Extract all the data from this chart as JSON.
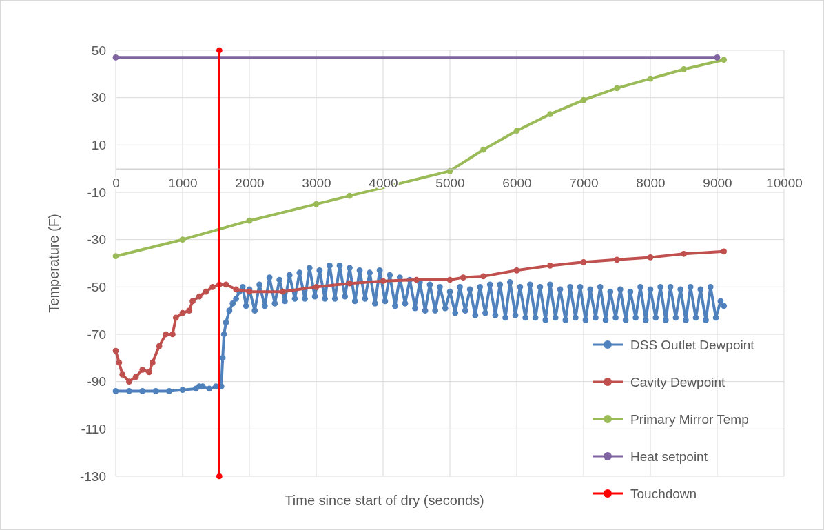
{
  "chart_data": {
    "type": "line",
    "xlabel": "Time since start of dry (seconds)",
    "ylabel": "Temperature (F)",
    "xlim": [
      0,
      10000
    ],
    "xticks": [
      0,
      1000,
      2000,
      3000,
      4000,
      5000,
      6000,
      7000,
      8000,
      9000,
      10000
    ],
    "ylim": [
      -130,
      50
    ],
    "yticks": [
      -130,
      -110,
      -90,
      -70,
      -50,
      -30,
      -10,
      10,
      30,
      50
    ],
    "grid": true,
    "legend": "bottom right",
    "marker": "circle",
    "line_style": "solid",
    "series": [
      {
        "name": "DSS Outlet Dewpoint",
        "color": "#4f81bd",
        "x": [
          0,
          200,
          400,
          600,
          800,
          1000,
          1200,
          1250,
          1300,
          1400,
          1500,
          1580,
          1600,
          1620,
          1650,
          1700,
          1750,
          1800,
          1850,
          1900,
          1950,
          2000,
          2080,
          2150,
          2230,
          2300,
          2380,
          2450,
          2530,
          2600,
          2680,
          2750,
          2830,
          2900,
          2980,
          3050,
          3130,
          3200,
          3280,
          3350,
          3430,
          3500,
          3580,
          3650,
          3730,
          3800,
          3880,
          3950,
          4030,
          4100,
          4180,
          4250,
          4330,
          4400,
          4480,
          4550,
          4630,
          4700,
          4780,
          4850,
          4930,
          5000,
          5080,
          5150,
          5230,
          5300,
          5380,
          5450,
          5530,
          5600,
          5680,
          5750,
          5830,
          5900,
          5980,
          6050,
          6130,
          6200,
          6280,
          6350,
          6430,
          6500,
          6580,
          6650,
          6730,
          6800,
          6880,
          6950,
          7030,
          7100,
          7180,
          7250,
          7330,
          7400,
          7480,
          7550,
          7630,
          7700,
          7780,
          7850,
          7930,
          8000,
          8080,
          8150,
          8230,
          8300,
          8380,
          8450,
          8530,
          8600,
          8680,
          8750,
          8830,
          8900,
          8980,
          9050,
          9100
        ],
        "values": [
          -94,
          -94,
          -94,
          -94,
          -94,
          -93.5,
          -93,
          -92,
          -92,
          -93,
          -92,
          -92,
          -80,
          -70,
          -65,
          -60,
          -57,
          -55,
          -52,
          -50,
          -58,
          -51,
          -60,
          -49,
          -58,
          -46,
          -57,
          -47,
          -56,
          -45,
          -55,
          -44,
          -55,
          -42,
          -54,
          -43,
          -55,
          -41,
          -55,
          -41,
          -54,
          -42,
          -56,
          -43,
          -55,
          -44,
          -57,
          -43,
          -56,
          -45,
          -58,
          -46,
          -57,
          -47,
          -59,
          -48,
          -60,
          -49,
          -60,
          -50,
          -59,
          -52,
          -61,
          -50,
          -60,
          -51,
          -62,
          -50,
          -61,
          -49,
          -62,
          -49,
          -63,
          -48,
          -62,
          -50,
          -63,
          -49,
          -63,
          -50,
          -64,
          -49,
          -63,
          -51,
          -64,
          -50,
          -63,
          -50,
          -64,
          -51,
          -63,
          -50,
          -64,
          -52,
          -63,
          -51,
          -64,
          -52,
          -63,
          -50,
          -64,
          -51,
          -63,
          -50,
          -64,
          -50,
          -63,
          -51,
          -64,
          -50,
          -63,
          -51,
          -64,
          -50,
          -63,
          -56,
          -58
        ]
      },
      {
        "name": "Cavity Dewpoint",
        "color": "#c0504d",
        "x": [
          0,
          50,
          100,
          200,
          300,
          400,
          500,
          550,
          650,
          750,
          850,
          900,
          1000,
          1100,
          1150,
          1250,
          1350,
          1450,
          1550,
          1650,
          1800,
          2000,
          2500,
          3000,
          3500,
          4000,
          4500,
          5000,
          5200,
          5500,
          6000,
          6500,
          7000,
          7500,
          8000,
          8500,
          9100
        ],
        "values": [
          -77,
          -82,
          -87,
          -90,
          -88,
          -85,
          -86,
          -82,
          -75,
          -70,
          -70,
          -63,
          -61,
          -60,
          -56,
          -54,
          -52,
          -50,
          -49,
          -49,
          -51,
          -52,
          -52,
          -50,
          -48.5,
          -47.5,
          -47,
          -47,
          -46,
          -45.5,
          -43,
          -41,
          -39.5,
          -38.5,
          -37.5,
          -36,
          -35
        ]
      },
      {
        "name": "Primary Mirror Temp",
        "color": "#9bbb59",
        "x": [
          0,
          1000,
          2000,
          3000,
          3500,
          5000,
          5500,
          6000,
          6500,
          7000,
          7500,
          8000,
          8500,
          9100
        ],
        "values": [
          -37,
          -30,
          -22,
          -15,
          -11.5,
          -1,
          8,
          16,
          23,
          29,
          34,
          38,
          42,
          46
        ]
      },
      {
        "name": "Heat setpoint",
        "color": "#8064a2",
        "x": [
          0,
          9000
        ],
        "values": [
          47,
          47
        ]
      },
      {
        "name": "Touchdown",
        "color": "#ff0000",
        "x": [
          1550,
          1550
        ],
        "values": [
          -130,
          50
        ]
      }
    ]
  }
}
